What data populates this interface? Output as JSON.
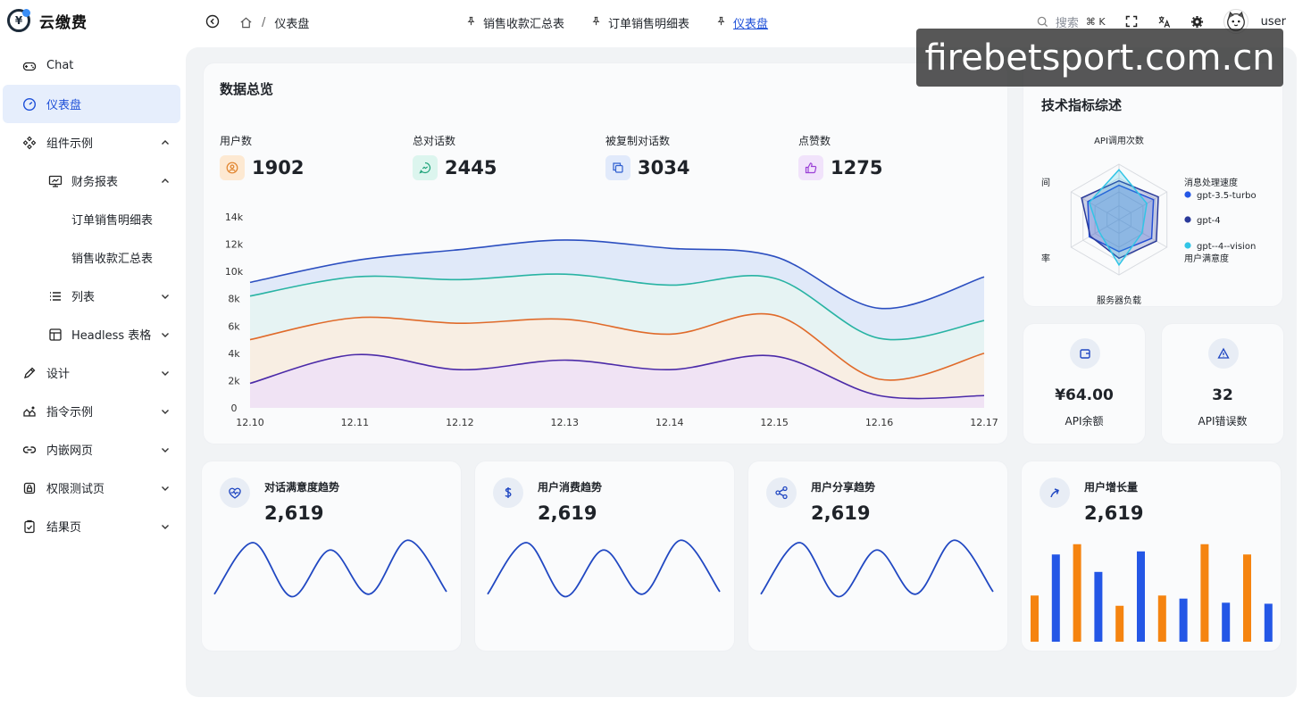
{
  "app": {
    "name": "云缴费"
  },
  "sidebar": {
    "items": [
      {
        "label": "Chat",
        "icon": "gamepad-icon",
        "chevron": ""
      },
      {
        "label": "仪表盘",
        "icon": "dashboard-icon",
        "chevron": "",
        "active": true
      },
      {
        "label": "组件示例",
        "icon": "components-icon",
        "chevron": "up"
      },
      {
        "label": "财务报表",
        "icon": "monitor-icon",
        "chevron": "up",
        "level": 1
      },
      {
        "label": "订单销售明细表",
        "level": 2
      },
      {
        "label": "销售收款汇总表",
        "level": 2
      },
      {
        "label": "列表",
        "icon": "list-icon",
        "chevron": "down",
        "level": 1
      },
      {
        "label": "Headless 表格",
        "icon": "table-icon",
        "chevron": "down",
        "level": 1
      },
      {
        "label": "设计",
        "icon": "design-icon",
        "chevron": "down"
      },
      {
        "label": "指令示例",
        "icon": "directive-icon",
        "chevron": "down"
      },
      {
        "label": "内嵌网页",
        "icon": "link-icon",
        "chevron": "down"
      },
      {
        "label": "权限测试页",
        "icon": "lock-icon",
        "chevron": "down"
      },
      {
        "label": "结果页",
        "icon": "clipboard-icon",
        "chevron": "down"
      }
    ]
  },
  "header": {
    "breadcrumb_sep": "/",
    "breadcrumb_current": "仪表盘",
    "tabs": [
      {
        "label": "销售收款汇总表"
      },
      {
        "label": "订单销售明细表"
      },
      {
        "label": "仪表盘",
        "active": true
      }
    ],
    "search_placeholder": "搜索",
    "search_shortcut": "⌘ K",
    "username": "user"
  },
  "overview": {
    "title": "数据总览",
    "stats": [
      {
        "label": "用户数",
        "value": "1902",
        "icon": "user-icon",
        "bg": "#fde9d2",
        "fg": "#e0822a"
      },
      {
        "label": "总对话数",
        "value": "2445",
        "icon": "message-icon",
        "bg": "#dcf5ee",
        "fg": "#1fa37a"
      },
      {
        "label": "被复制对话数",
        "value": "3034",
        "icon": "copy-icon",
        "bg": "#e1eafb",
        "fg": "#2f5fd0"
      },
      {
        "label": "点赞数",
        "value": "1275",
        "icon": "thumbs-up-icon",
        "bg": "#f1e3fb",
        "fg": "#9a3fd6"
      }
    ]
  },
  "chart_data": [
    {
      "type": "area",
      "x": [
        "12.10",
        "12.11",
        "12.12",
        "12.13",
        "12.14",
        "12.15",
        "12.16",
        "12.17"
      ],
      "ylim": [
        0,
        14000
      ],
      "yticks": [
        "0",
        "2k",
        "4k",
        "6k",
        "8k",
        "10k",
        "12k",
        "14k"
      ],
      "series": [
        {
          "values": [
            9200,
            10800,
            11600,
            12300,
            11700,
            11100,
            7300,
            9600
          ],
          "color": "#2c4fc0",
          "fill": "#dbe5f8"
        },
        {
          "values": [
            8200,
            9600,
            9400,
            9800,
            9000,
            9500,
            5100,
            6400
          ],
          "color": "#28b3a3",
          "fill": "#e6f4f2"
        },
        {
          "values": [
            5000,
            6600,
            6200,
            6500,
            5400,
            6800,
            2100,
            4000
          ],
          "color": "#e06a2a",
          "fill": "#faecdf"
        },
        {
          "values": [
            1800,
            3900,
            2800,
            3500,
            2800,
            3800,
            900,
            900
          ],
          "color": "#4b2aa8",
          "fill": "#efe1f7"
        }
      ]
    },
    {
      "type": "radar",
      "indicators": [
        "API调用次数",
        "消息处理速度",
        "用户满意度",
        "服务器负载",
        "率",
        "间"
      ],
      "max": 100,
      "series": [
        {
          "name": "gpt-3.5-turbo",
          "color": "#2457e6",
          "values": [
            62,
            72,
            68,
            58,
            62,
            65
          ]
        },
        {
          "name": "gpt-4",
          "color": "#2a3a9a",
          "values": [
            70,
            82,
            78,
            70,
            60,
            78
          ]
        },
        {
          "name": "gpt-4--vision",
          "color": "#32c5e6",
          "values": [
            90,
            58,
            48,
            82,
            42,
            62
          ]
        }
      ]
    },
    {
      "type": "line",
      "name": "对话满意度趋势",
      "values": [
        30,
        72,
        28,
        66,
        30,
        74,
        32
      ],
      "color": "#2148c2"
    },
    {
      "type": "bar",
      "name": "用户增长量",
      "values": [
        45,
        85,
        95,
        68,
        35,
        88,
        45,
        42,
        95,
        38,
        85,
        37
      ],
      "colors": [
        "#f58410",
        "#2457e6",
        "#f58410",
        "#2457e6",
        "#f58410",
        "#2457e6",
        "#f58410",
        "#2457e6",
        "#f58410",
        "#2457e6",
        "#f58410",
        "#2457e6"
      ]
    }
  ],
  "radar_card": {
    "title": "技术指标综述",
    "labels": {
      "top": "API调用次数",
      "right_top": "消息处理速度",
      "right_bottom": "用户满意度",
      "bottom": "服务器负载",
      "left_bottom": "率",
      "left_top": "间"
    },
    "legend": [
      "gpt-3.5-turbo",
      "gpt-4",
      "gpt--4--vision"
    ]
  },
  "kpis": [
    {
      "value": "¥64.00",
      "label": "API余额",
      "icon": "wallet-icon"
    },
    {
      "value": "32",
      "label": "API错误数",
      "icon": "warning-icon"
    }
  ],
  "trends": [
    {
      "title": "对话满意度趋势",
      "value": "2,619",
      "icon": "heart-pulse-icon"
    },
    {
      "title": "用户消费趋势",
      "value": "2,619",
      "icon": "dollar-icon"
    },
    {
      "title": "用户分享趋势",
      "value": "2,619",
      "icon": "share-icon"
    },
    {
      "title": "用户增长量",
      "value": "2,619",
      "icon": "growth-arrow-icon"
    }
  ],
  "watermark": "firebetsport.com.cn"
}
